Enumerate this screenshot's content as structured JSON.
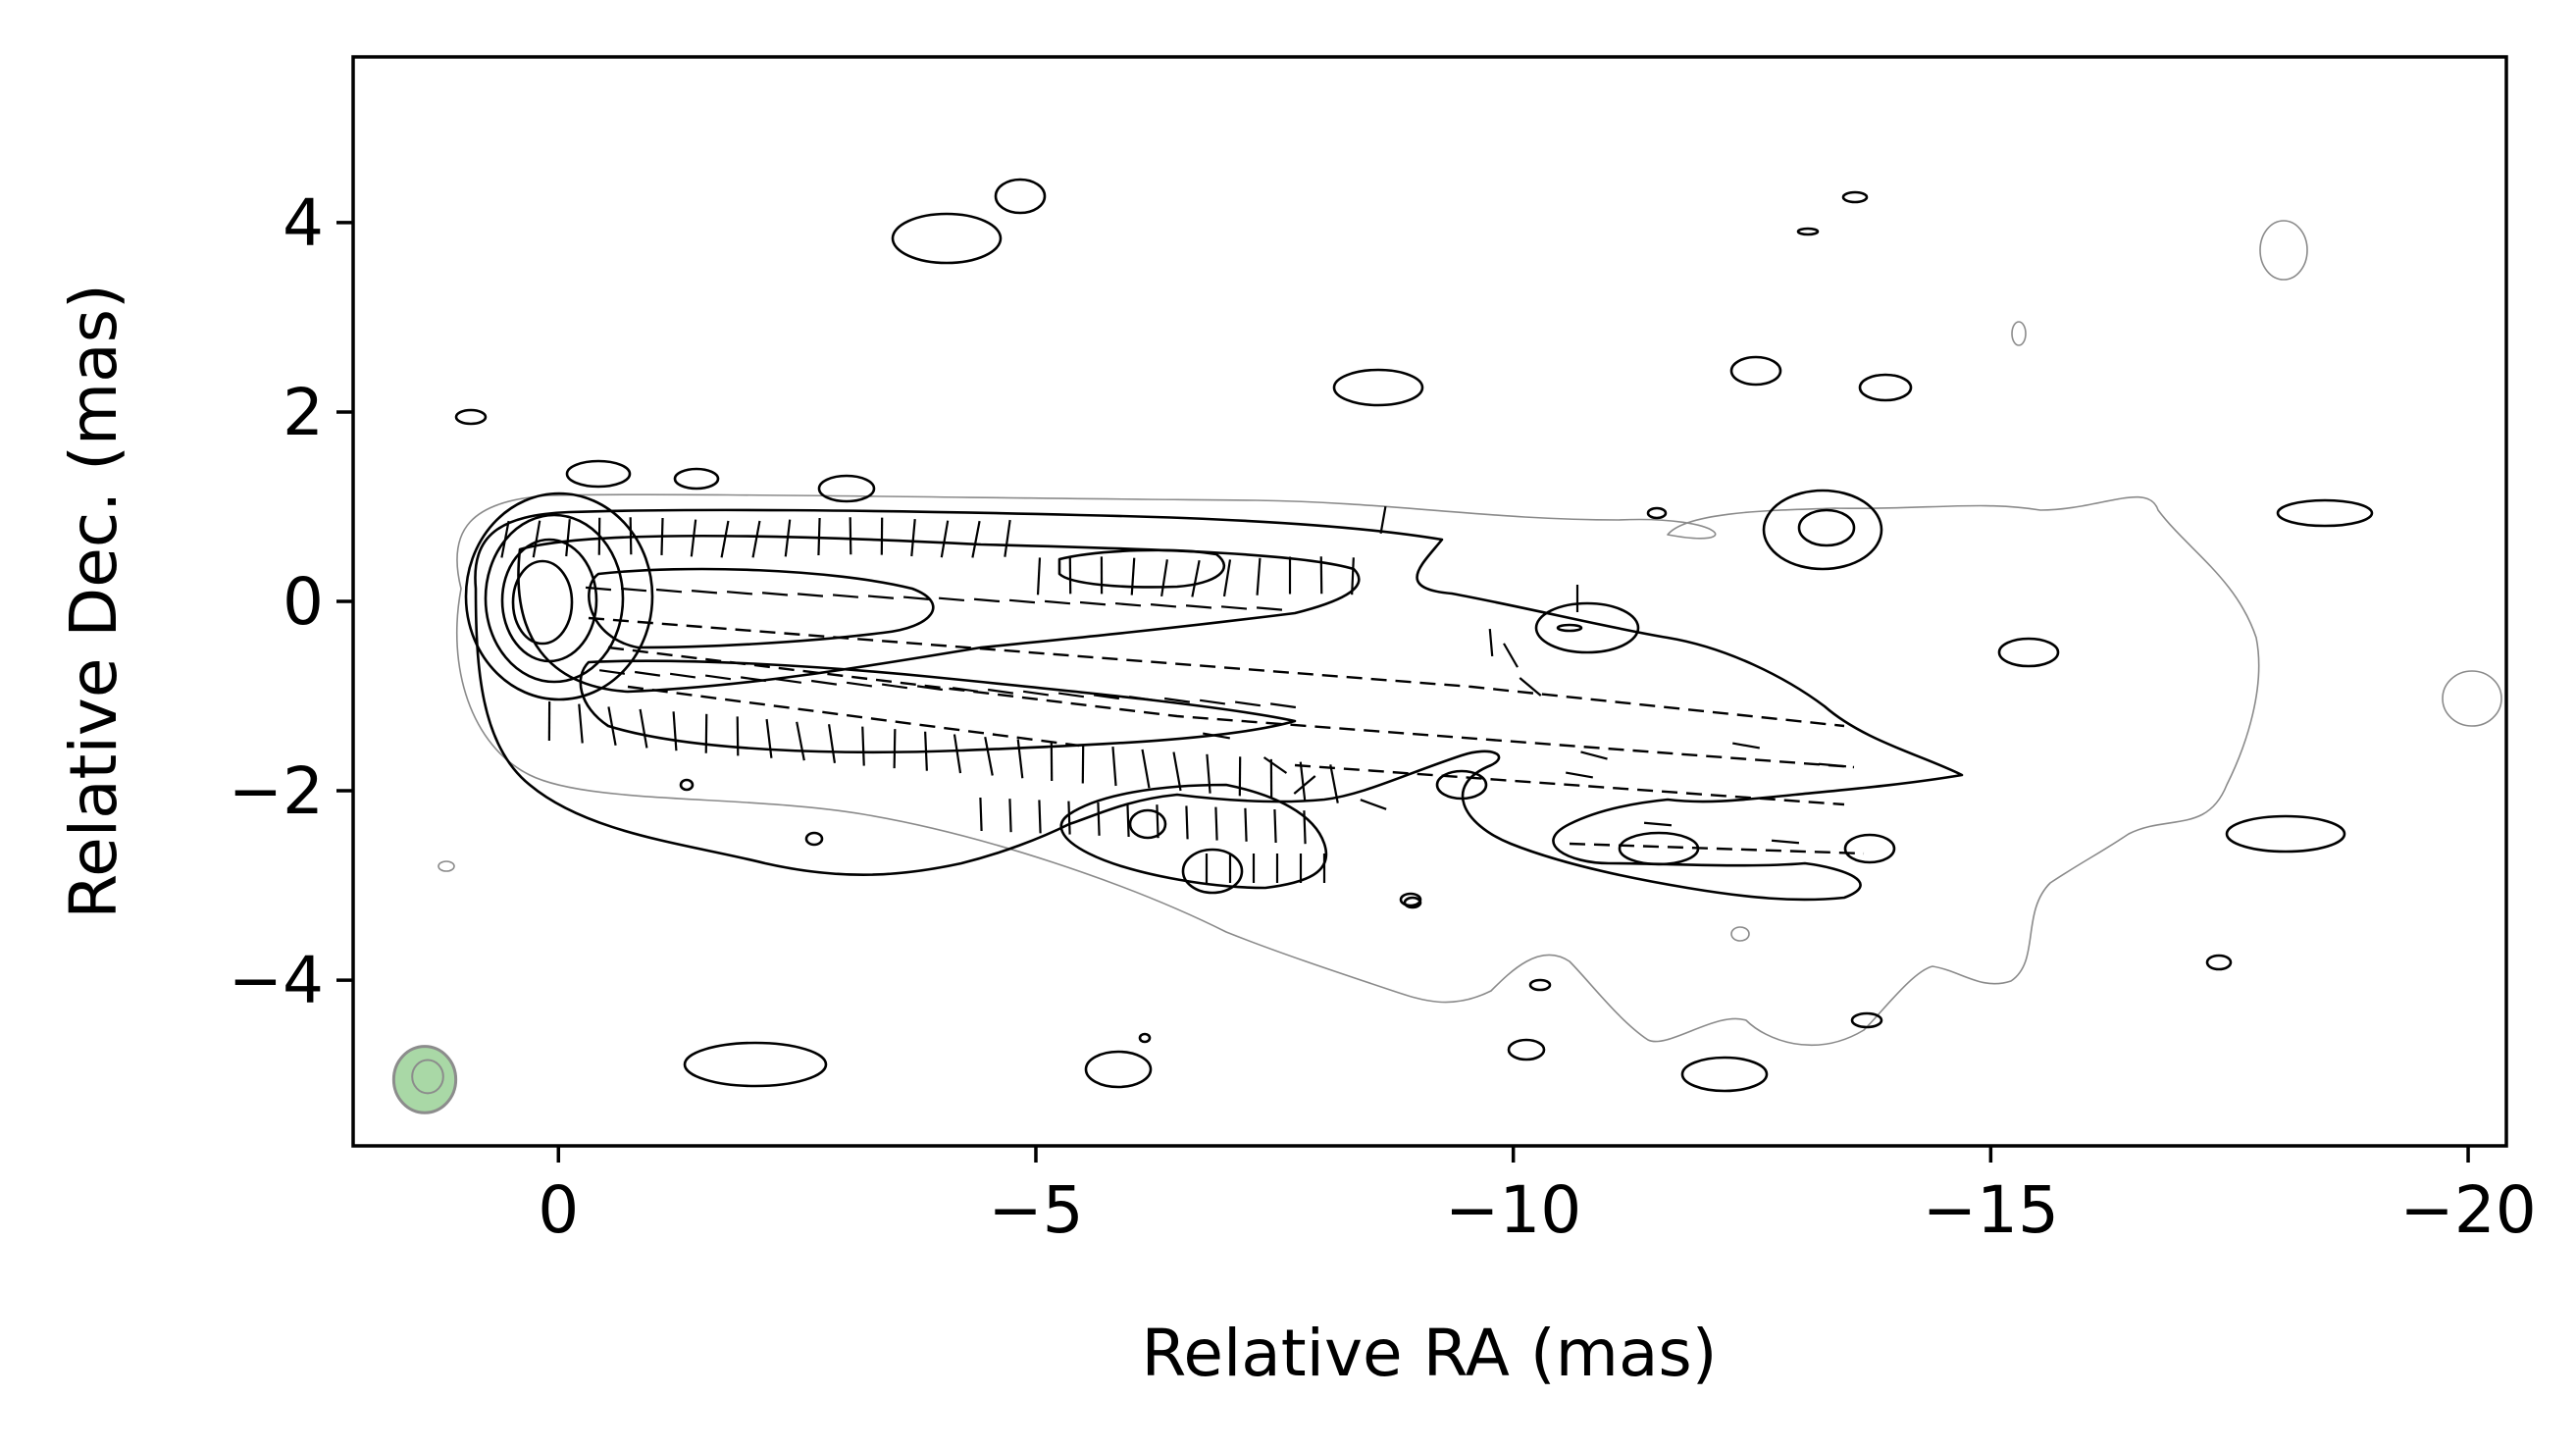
{
  "chart_data": {
    "type": "contour",
    "title": "",
    "xlabel": "Relative RA (mas)",
    "ylabel": "Relative Dec. (mas)",
    "xlim": [
      2.15,
      -20.4
    ],
    "ylim": [
      -5.75,
      5.75
    ],
    "x_ticks": [
      {
        "value": 0,
        "label": "0"
      },
      {
        "value": -5,
        "label": "−5"
      },
      {
        "value": -10,
        "label": "−10"
      },
      {
        "value": -15,
        "label": "−15"
      },
      {
        "value": -20,
        "label": "−20"
      }
    ],
    "y_ticks": [
      {
        "value": 4,
        "label": "4"
      },
      {
        "value": 2,
        "label": "2"
      },
      {
        "value": 0,
        "label": "0"
      },
      {
        "value": -2,
        "label": "−2"
      },
      {
        "value": -4,
        "label": "−4"
      }
    ],
    "grid": false,
    "beam": {
      "ra": 1.4,
      "dec": -5.05,
      "major_mas": 0.7,
      "minor_mas": 0.65,
      "color": "#2ca02c"
    },
    "colors": {
      "contour": "#000000",
      "lowest_contour": "#8a8a8a",
      "evpa": "#000000",
      "beam_fill": "#a9d8a6",
      "beam_edge": "#8c8c8c"
    },
    "core": {
      "ra": 0.0,
      "dec": 0.0
    },
    "jet_direction": "westward (decreasing RA), slightly south",
    "evpa_regions": [
      {
        "name": "upper jet edge",
        "ra_range": [
          -0.5,
          -8.3
        ],
        "dec": 0.3,
        "orientation": "vertical"
      },
      {
        "name": "lower jet edge",
        "ra_range": [
          0.0,
          -8.3
        ],
        "dec": -1.6,
        "orientation": "vertical"
      },
      {
        "name": "jet spine",
        "ra_range": [
          -0.5,
          -14.0
        ],
        "dec": -0.9,
        "orientation": "horizontal"
      }
    ]
  }
}
